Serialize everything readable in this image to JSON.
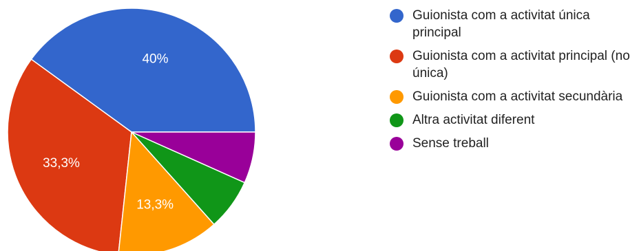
{
  "chart_data": {
    "type": "pie",
    "categories": [
      "Guionista com a activitat única principal",
      "Guionista com a activitat principal (no única)",
      "Guionista com a activitat secundària",
      "Altra activitat diferent",
      "Sense treball"
    ],
    "values": [
      40,
      33.3,
      13.3,
      6.7,
      6.7
    ],
    "slice_labels": [
      "40%",
      "33,3%",
      "13,3%",
      "",
      ""
    ],
    "colors": [
      "#3366cc",
      "#dc3912",
      "#ff9900",
      "#109618",
      "#990099"
    ],
    "legend_placement": "right"
  }
}
